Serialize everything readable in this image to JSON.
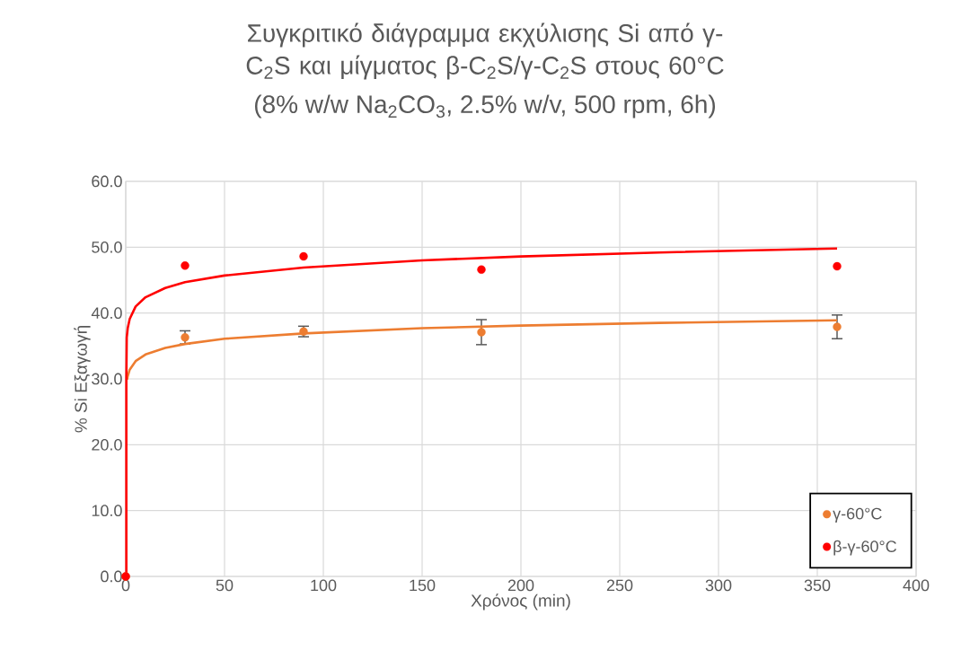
{
  "chart_data": {
    "type": "scatter",
    "title": "Συγκριτικό διάγραμμα εκχύλισης Si από γ-C$_{2}$S και μίγματος β-C$_{2}$S/γ-C$_{2}$S στους 60°C",
    "subtitle": "(8% w/w Na$_{2}$CO$_{3}$, 2.5% w/v, 500 rpm, 6h)",
    "xlabel": "Χρόνος (min)",
    "ylabel": "% Si Εξαγωγή",
    "xlim": [
      0,
      400
    ],
    "xticks": [
      0,
      50,
      100,
      150,
      200,
      250,
      300,
      350,
      400
    ],
    "ylim": [
      0,
      60
    ],
    "yticks": [
      {
        "value": 0,
        "label": "0.0"
      },
      {
        "value": 10,
        "label": "10.0"
      },
      {
        "value": 20,
        "label": "20.0"
      },
      {
        "value": 30,
        "label": "30.0"
      },
      {
        "value": 40,
        "label": "40.0"
      },
      {
        "value": 50,
        "label": "50.0"
      },
      {
        "value": 60,
        "label": "60.0"
      }
    ],
    "grid": true,
    "legend": "bottom right",
    "series": [
      {
        "name": "γ-60°C",
        "color": "#ed7d31",
        "marker": "circle",
        "x": [
          0,
          30,
          90,
          180,
          360
        ],
        "values": [
          0,
          36.3,
          37.2,
          37.1,
          37.9
        ],
        "errors": [
          null,
          1.0,
          0.8,
          1.9,
          1.8
        ]
      },
      {
        "name": "β-γ-60°C",
        "color": "#ff0000",
        "marker": "circle",
        "x": [
          0,
          30,
          90,
          180,
          360
        ],
        "values": [
          0,
          47.2,
          48.6,
          46.6,
          47.1
        ]
      },
      {
        "type": "line",
        "color": "#ed7d31",
        "marker": "none",
        "line_style": "solid",
        "x": [
          0.7,
          1,
          2,
          5,
          10,
          20,
          30,
          50,
          90,
          150,
          200,
          270,
          360
        ],
        "values": [
          29.9,
          30.4,
          31.4,
          32.7,
          33.7,
          34.7,
          35.3,
          36.1,
          36.9,
          37.7,
          38.1,
          38.5,
          38.9
        ]
      },
      {
        "type": "line",
        "color": "#ff0000",
        "marker": "none",
        "line_style": "solid",
        "x": [
          0.3,
          0.3,
          0.5,
          1,
          2,
          5,
          10,
          20,
          30,
          50,
          90,
          150,
          200,
          270,
          360
        ],
        "values": [
          0,
          30,
          36.3,
          37.7,
          39.1,
          41.0,
          42.4,
          43.8,
          44.7,
          45.7,
          46.9,
          48.0,
          48.6,
          49.2,
          49.8
        ]
      }
    ]
  }
}
